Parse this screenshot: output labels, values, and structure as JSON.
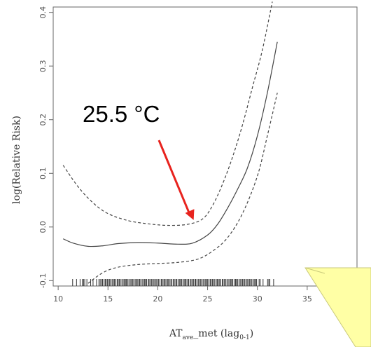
{
  "chart_data": {
    "type": "line",
    "xlabel": "AT",
    "xlabel_sub": "ave",
    "xlabel_rest": "_met (lag",
    "xlabel_lag_sub": "0-1",
    "xlabel_close": ")",
    "ylabel": "log(Relative Risk)",
    "xlim": [
      9.5,
      40
    ],
    "ylim": [
      -0.11,
      0.41
    ],
    "xticks": [
      "10",
      "15",
      "20",
      "25",
      "30",
      "35"
    ],
    "yticks": [
      "-0.1",
      "0.0",
      "0.1",
      "0.2",
      "0.3",
      "0.4"
    ],
    "grid": false,
    "annotation": {
      "text": "25.5 °C",
      "arrow_target_x": 23.6,
      "arrow_target_y": 0.013,
      "arrow_color": "#e8231e"
    },
    "series": [
      {
        "line": "solid",
        "x": [
          10.5,
          11.5,
          13,
          14.5,
          16,
          18,
          20,
          22,
          23.5,
          25,
          26,
          27,
          28,
          29,
          30,
          31,
          32
        ],
        "y": [
          -0.022,
          -0.03,
          -0.036,
          -0.035,
          -0.031,
          -0.029,
          -0.03,
          -0.032,
          -0.03,
          -0.015,
          0.005,
          0.035,
          0.07,
          0.11,
          0.17,
          0.25,
          0.345
        ]
      },
      {
        "line": "dashed",
        "x": [
          10.5,
          12,
          13.5,
          15,
          17,
          19,
          21,
          23,
          24.5,
          25.5,
          26.5,
          27.5,
          28.5,
          29.5,
          30.5,
          31.5
        ],
        "y": [
          0.115,
          0.075,
          0.045,
          0.025,
          0.012,
          0.006,
          0.003,
          0.005,
          0.015,
          0.04,
          0.08,
          0.13,
          0.19,
          0.26,
          0.33,
          0.42
        ]
      },
      {
        "line": "dashed",
        "x": [
          13,
          14.5,
          16,
          18,
          20,
          22,
          24,
          25.5,
          27,
          28.5,
          30,
          31,
          32
        ],
        "y": [
          -0.105,
          -0.085,
          -0.075,
          -0.07,
          -0.068,
          -0.066,
          -0.06,
          -0.045,
          -0.02,
          0.025,
          0.095,
          0.17,
          0.25
        ]
      }
    ],
    "rug_range": [
      11.2,
      31.8
    ]
  },
  "colors": {
    "curve": "#444444",
    "axis": "#666666",
    "note_fill": "#ffffa5",
    "note_stroke": "#c9c97a"
  }
}
